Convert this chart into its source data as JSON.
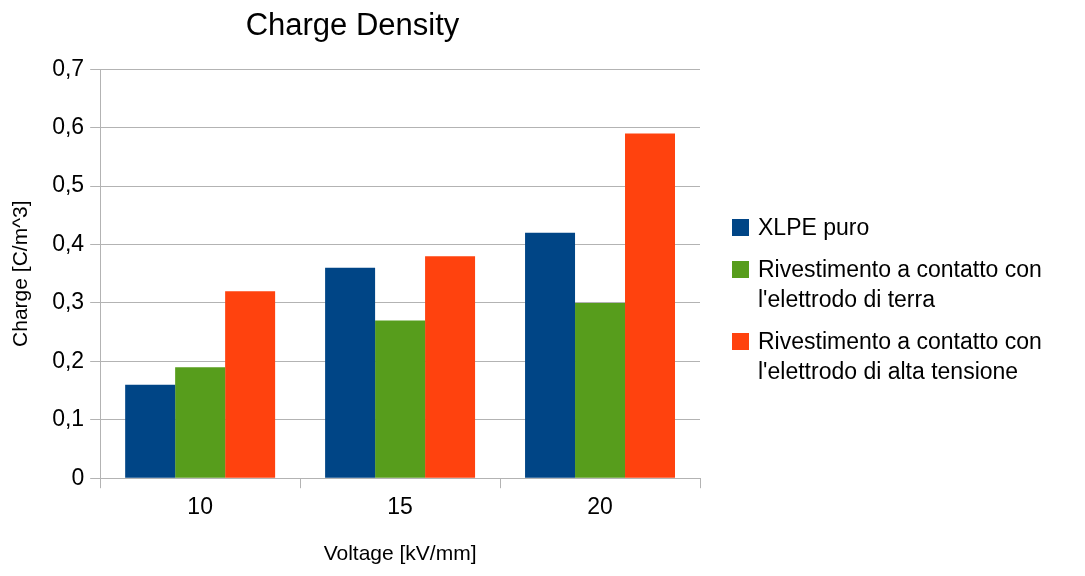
{
  "chart_data": {
    "type": "bar",
    "title": "Charge Density",
    "xlabel": "Voltage [kV/mm]",
    "ylabel": "Charge [C/m^3]",
    "categories": [
      "10",
      "15",
      "20"
    ],
    "series": [
      {
        "name": "XLPE puro",
        "color": "#004586",
        "values": [
          0.16,
          0.36,
          0.42
        ]
      },
      {
        "name": "Rivestimento a contatto con l'elettrodo di terra",
        "color": "#579d1c",
        "values": [
          0.19,
          0.27,
          0.3
        ]
      },
      {
        "name": "Rivestimento a contatto con l'elettrodo di alta tensione",
        "color": "#ff420e",
        "values": [
          0.32,
          0.38,
          0.59
        ]
      }
    ],
    "ylim": [
      0,
      0.7
    ],
    "yticks": [
      0,
      {
        "value": 0.1,
        "label": "0,1"
      },
      {
        "value": 0.2,
        "label": "0,2"
      },
      {
        "value": 0.3,
        "label": "0,3"
      },
      {
        "value": 0.4,
        "label": "0,4"
      },
      {
        "value": 0.5,
        "label": "0,5"
      },
      {
        "value": 0.6,
        "label": "0,6"
      },
      {
        "value": 0.7,
        "label": "0,7"
      }
    ],
    "grid": "y",
    "legend": "right"
  }
}
